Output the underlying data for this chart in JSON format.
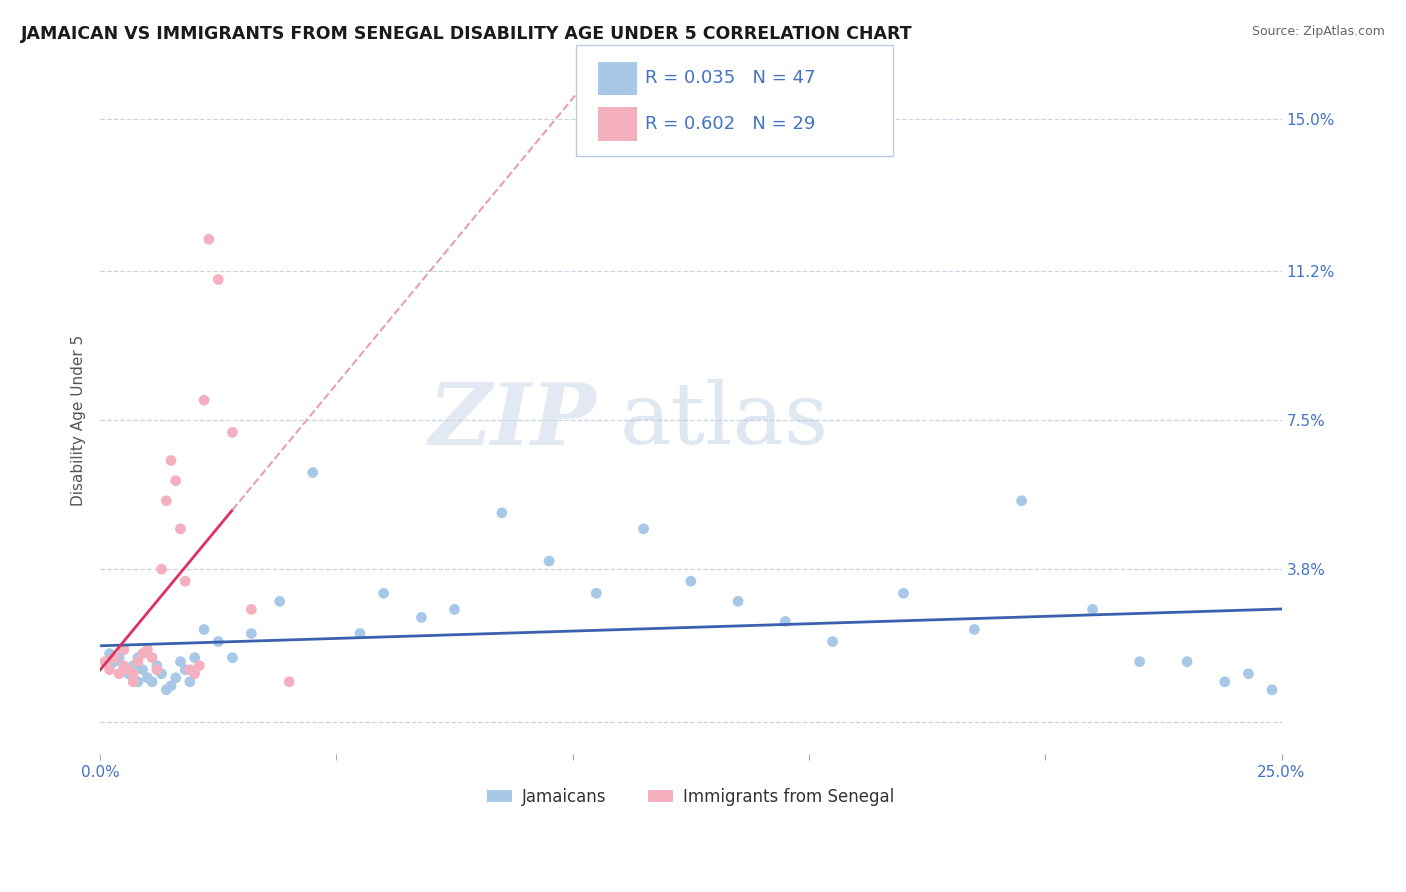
{
  "title": "JAMAICAN VS IMMIGRANTS FROM SENEGAL DISABILITY AGE UNDER 5 CORRELATION CHART",
  "source": "Source: ZipAtlas.com",
  "ylabel": "Disability Age Under 5",
  "xlim": [
    0.0,
    0.25
  ],
  "ylim": [
    -0.008,
    0.158
  ],
  "xtick_positions": [
    0.0,
    0.05,
    0.1,
    0.15,
    0.2,
    0.25
  ],
  "xticklabels": [
    "0.0%",
    "",
    "",
    "",
    "",
    "25.0%"
  ],
  "ytick_positions": [
    0.0,
    0.038,
    0.075,
    0.112,
    0.15
  ],
  "yticklabels": [
    "",
    "3.8%",
    "7.5%",
    "11.2%",
    "15.0%"
  ],
  "jamaicans_x": [
    0.002,
    0.003,
    0.004,
    0.005,
    0.006,
    0.007,
    0.008,
    0.008,
    0.009,
    0.01,
    0.011,
    0.012,
    0.013,
    0.014,
    0.015,
    0.016,
    0.017,
    0.018,
    0.019,
    0.02,
    0.022,
    0.025,
    0.028,
    0.032,
    0.038,
    0.045,
    0.055,
    0.06,
    0.068,
    0.075,
    0.085,
    0.095,
    0.105,
    0.115,
    0.125,
    0.135,
    0.145,
    0.155,
    0.17,
    0.185,
    0.195,
    0.21,
    0.22,
    0.23,
    0.238,
    0.243,
    0.248
  ],
  "jamaicans_y": [
    0.017,
    0.015,
    0.016,
    0.018,
    0.012,
    0.014,
    0.016,
    0.01,
    0.013,
    0.011,
    0.01,
    0.014,
    0.012,
    0.008,
    0.009,
    0.011,
    0.015,
    0.013,
    0.01,
    0.016,
    0.023,
    0.02,
    0.016,
    0.022,
    0.03,
    0.062,
    0.022,
    0.032,
    0.026,
    0.028,
    0.052,
    0.04,
    0.032,
    0.048,
    0.035,
    0.03,
    0.025,
    0.02,
    0.032,
    0.023,
    0.055,
    0.028,
    0.015,
    0.015,
    0.01,
    0.012,
    0.008
  ],
  "senegal_x": [
    0.001,
    0.002,
    0.003,
    0.004,
    0.005,
    0.005,
    0.006,
    0.007,
    0.007,
    0.008,
    0.009,
    0.01,
    0.011,
    0.012,
    0.013,
    0.014,
    0.015,
    0.016,
    0.017,
    0.018,
    0.019,
    0.02,
    0.021,
    0.022,
    0.023,
    0.025,
    0.028,
    0.032,
    0.04
  ],
  "senegal_y": [
    0.015,
    0.013,
    0.016,
    0.012,
    0.014,
    0.018,
    0.013,
    0.012,
    0.01,
    0.015,
    0.017,
    0.018,
    0.016,
    0.013,
    0.038,
    0.055,
    0.065,
    0.06,
    0.048,
    0.035,
    0.013,
    0.012,
    0.014,
    0.08,
    0.12,
    0.11,
    0.072,
    0.028,
    0.01
  ],
  "jamaicans_color": "#a8c8e8",
  "senegal_color": "#f5b0c0",
  "trend_jamaicans_color": "#3a60b0",
  "trend_senegal_color": "#e03060",
  "trend_senegal_dashed_color": "#e8a0b0",
  "legend_text_1": "R = 0.035   N = 47",
  "legend_text_2": "R = 0.602   N = 29",
  "legend_color_1": "#4472c4",
  "legend_swatch_1": "#a8c8e8",
  "legend_swatch_2": "#f5b0c0",
  "watermark_line1": "ZIP",
  "watermark_line2": "atlas",
  "background_color": "#ffffff",
  "grid_color": "#c8d4e4",
  "title_color": "#1a1a1a",
  "source_color": "#666666",
  "tick_color": "#4472c4",
  "ylabel_color": "#555555",
  "bottom_legend_color": "#333333"
}
